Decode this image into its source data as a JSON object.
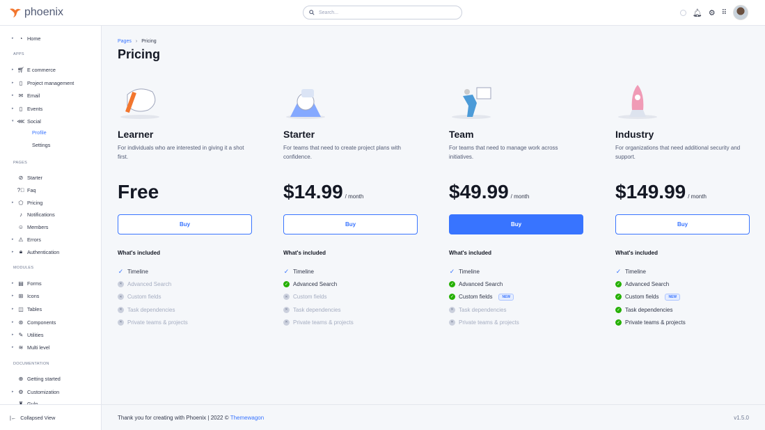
{
  "brand": {
    "name": "phoenix",
    "accent": "#3874ff",
    "logo_color": "#f2762e"
  },
  "search": {
    "placeholder": "Search..."
  },
  "topbar": {
    "icons": [
      "theme-toggle-icon",
      "bell-icon",
      "gear-icon",
      "grid-icon"
    ]
  },
  "sidebar": {
    "items": [
      {
        "label": "Home",
        "icon": "clock-icon",
        "caret": true
      },
      {
        "section": "APPS"
      },
      {
        "label": "E commerce",
        "icon": "cart-icon",
        "caret": true
      },
      {
        "label": "Project management",
        "icon": "clipboard-icon",
        "caret": true
      },
      {
        "label": "Email",
        "icon": "mail-icon",
        "caret": true
      },
      {
        "label": "Events",
        "icon": "calendar-icon",
        "caret": true
      },
      {
        "label": "Social",
        "icon": "share-icon",
        "caret": true,
        "open": true
      },
      {
        "sub": "Profile",
        "active": true
      },
      {
        "sub": "Settings"
      },
      {
        "section": "PAGES"
      },
      {
        "label": "Starter",
        "icon": "compass-icon"
      },
      {
        "label": "Faq",
        "icon": "help-icon"
      },
      {
        "label": "Pricing",
        "icon": "tag-icon",
        "caret": true
      },
      {
        "label": "Notifications",
        "icon": "bell-icon"
      },
      {
        "label": "Members",
        "icon": "users-icon"
      },
      {
        "label": "Errors",
        "icon": "alert-icon",
        "caret": true
      },
      {
        "label": "Authentication",
        "icon": "lock-icon",
        "caret": true
      },
      {
        "section": "MODULES"
      },
      {
        "label": "Forms",
        "icon": "file-icon",
        "caret": true
      },
      {
        "label": "Icons",
        "icon": "grid-icon",
        "caret": true
      },
      {
        "label": "Tables",
        "icon": "columns-icon",
        "caret": true
      },
      {
        "label": "Components",
        "icon": "package-icon",
        "caret": true
      },
      {
        "label": "Utilities",
        "icon": "tool-icon",
        "caret": true
      },
      {
        "label": "Multi level",
        "icon": "layers-icon",
        "caret": true
      },
      {
        "section": "DOCUMENTATION"
      },
      {
        "label": "Getting started",
        "icon": "lifebuoy-icon"
      },
      {
        "label": "Customization",
        "icon": "settings-icon",
        "caret": true
      },
      {
        "label": "Gulp",
        "icon": "gulp-icon"
      }
    ],
    "collapse_label": "Collapsed View"
  },
  "breadcrumb": [
    "Pages",
    "Pricing"
  ],
  "page_title": "Pricing",
  "included_label": "What's included",
  "new_badge": "NEW",
  "features": [
    "Timeline",
    "Advanced Search",
    "Custom fields",
    "Task dependencies",
    "Private teams & projects"
  ],
  "plans": [
    {
      "name": "Learner",
      "desc": "For individuals who are interested in giving it a shot first.",
      "price": "Free",
      "per": "",
      "button": "Buy",
      "primary": false,
      "features": [
        true,
        false,
        false,
        false,
        false
      ]
    },
    {
      "name": "Starter",
      "desc": "For teams that need to create project plans with confidence.",
      "price": "$14.99",
      "per": "/ month",
      "button": "Buy",
      "primary": false,
      "features": [
        true,
        true,
        false,
        false,
        false
      ]
    },
    {
      "name": "Team",
      "desc": "For teams that need to manage work across initiatives.",
      "price": "$49.99",
      "per": "/ month",
      "button": "Buy",
      "primary": true,
      "features": [
        true,
        true,
        true,
        false,
        false
      ]
    },
    {
      "name": "Industry",
      "desc": "For organizations that need additional security and support.",
      "price": "$149.99",
      "per": "/ month",
      "button": "Buy",
      "primary": false,
      "features": [
        true,
        true,
        true,
        true,
        true
      ]
    }
  ],
  "footer": {
    "text": "Thank you for creating with Phoenix | 2022 ©",
    "link": "Themewagon",
    "version": "v1.5.0"
  }
}
